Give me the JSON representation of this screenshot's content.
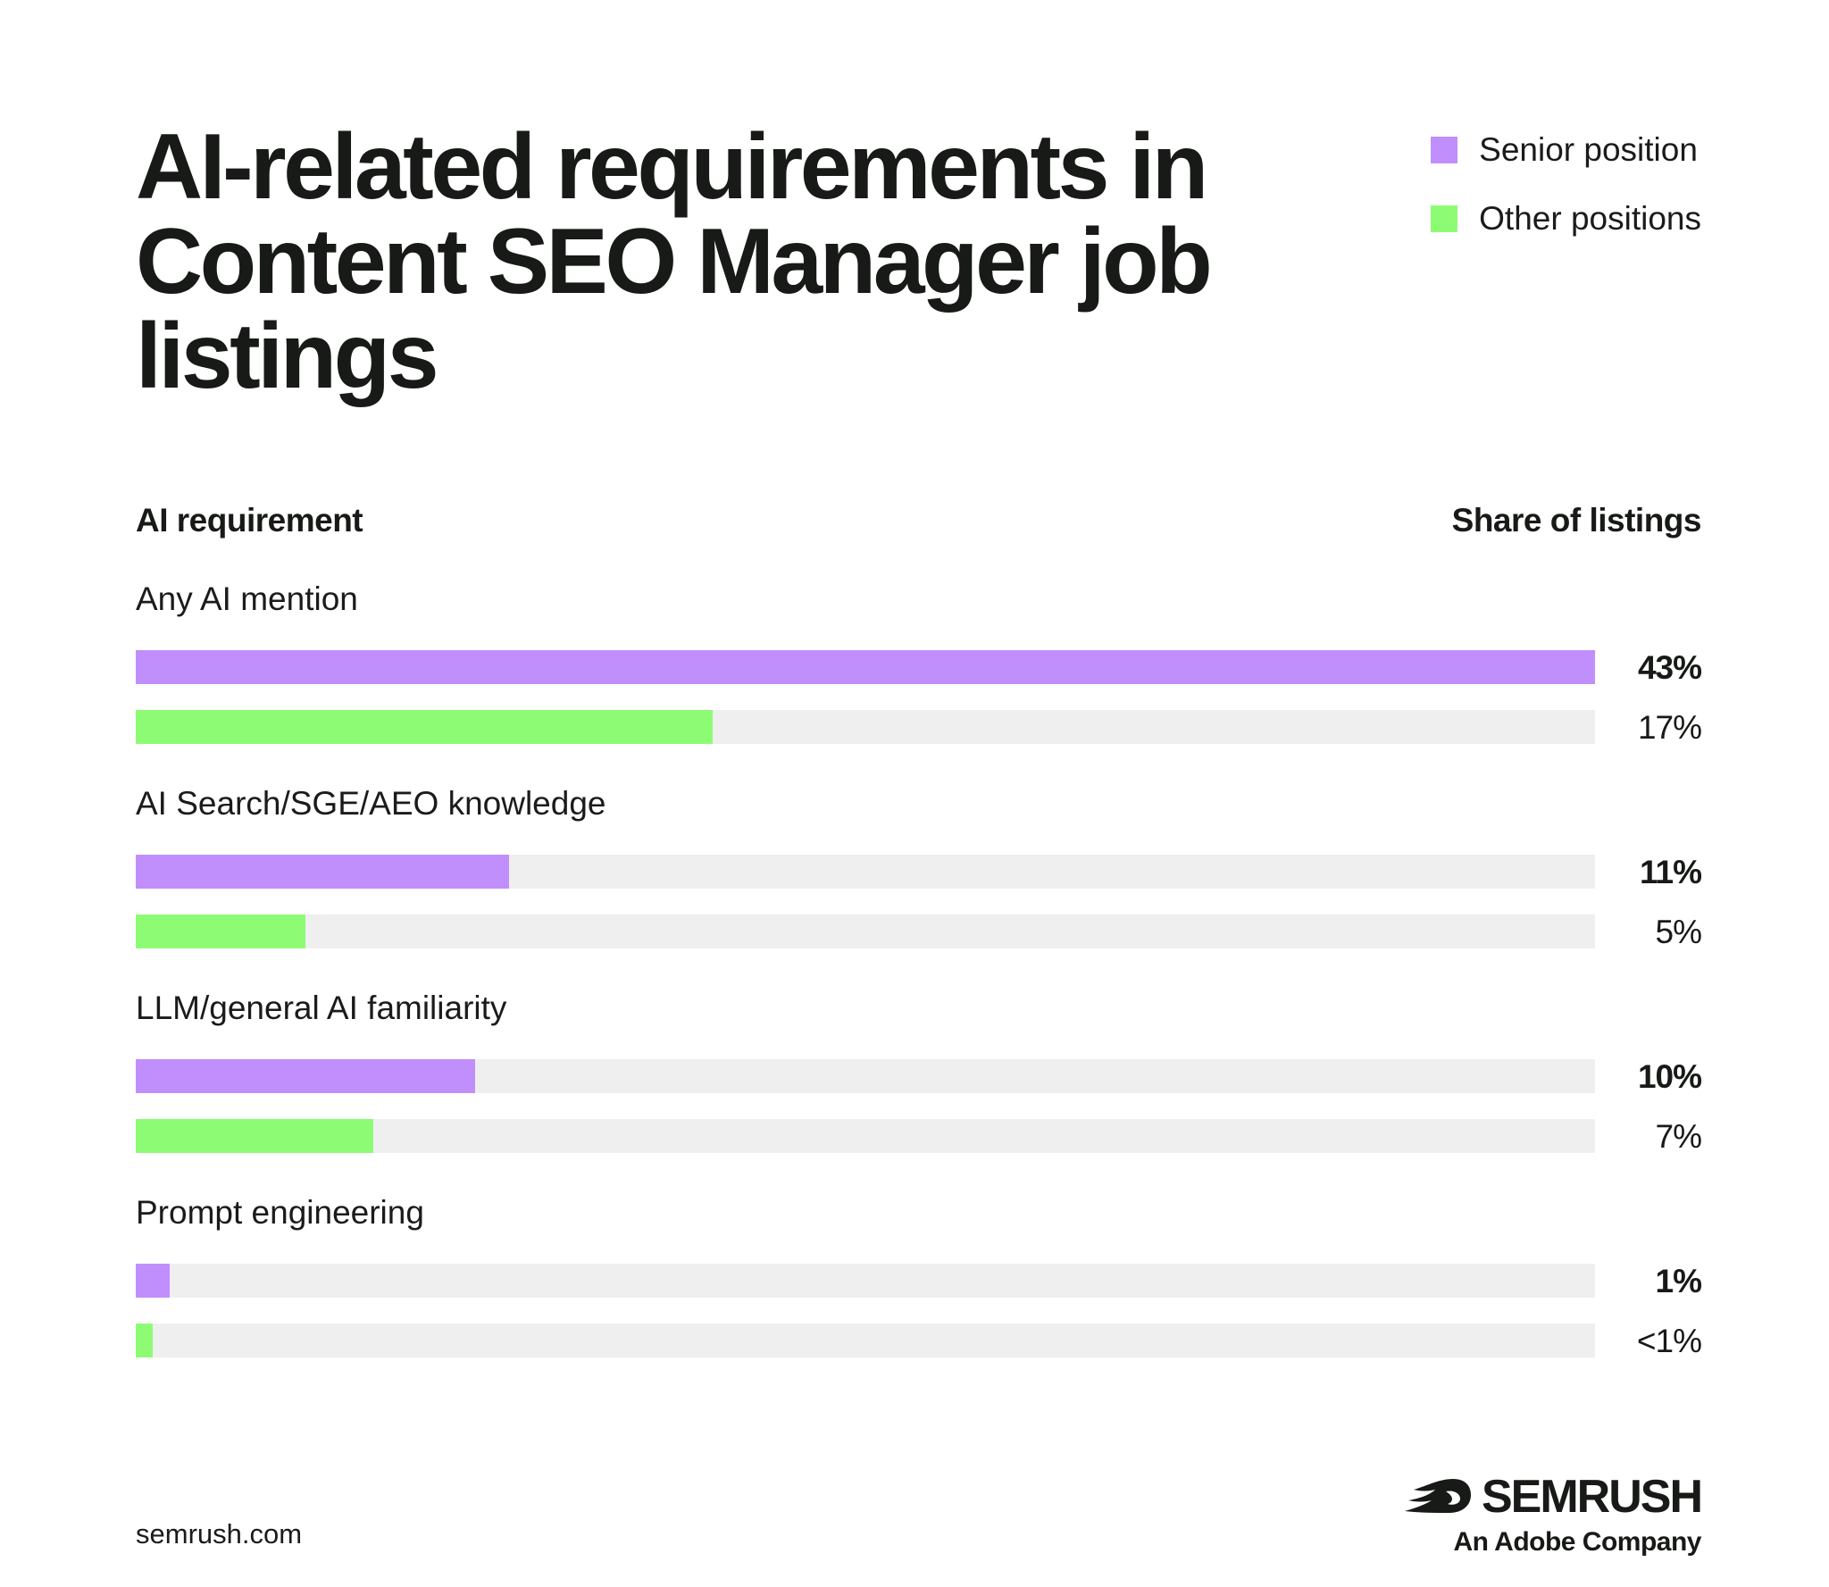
{
  "chart_data": {
    "type": "bar",
    "orientation": "horizontal",
    "title": "AI-related requirements in Content SEO Manager job listings",
    "column_headers": {
      "left": "AI requirement",
      "right": "Share of listings"
    },
    "legend": {
      "placement": "top-right",
      "items": [
        {
          "label": "Senior position",
          "color": "#c18ffc"
        },
        {
          "label": "Other positions",
          "color": "#8dfc74"
        }
      ]
    },
    "categories": [
      "Any AI mention",
      "AI Search/SGE/AEO knowledge",
      "LLM/general AI familiarity",
      "Prompt engineering"
    ],
    "series": [
      {
        "name": "Senior position",
        "color": "#c18ffc",
        "values": [
          43,
          11,
          10,
          1
        ],
        "labels": [
          "43%",
          "11%",
          "10%",
          "1%"
        ],
        "label_weight": "bold"
      },
      {
        "name": "Other positions",
        "color": "#8dfc74",
        "values": [
          17,
          5,
          7,
          0.5
        ],
        "labels": [
          "17%",
          "5%",
          "7%",
          "<1%"
        ],
        "label_weight": "normal"
      }
    ],
    "xlim": [
      0,
      43
    ],
    "track_color": "#efeff0",
    "grid": false
  },
  "footer": {
    "url": "semrush.com",
    "brand": "SEMRUSH",
    "brand_sub": "An Adobe Company"
  }
}
